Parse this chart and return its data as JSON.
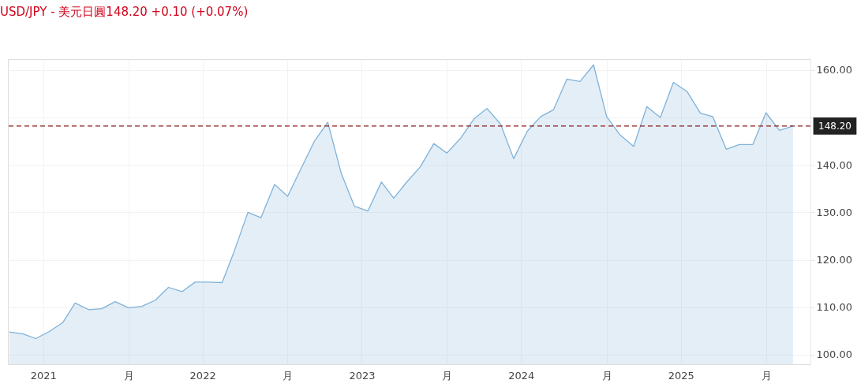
{
  "chart_data": {
    "type": "area",
    "title": "USD/JPY - 美元日圓148.20 +0.10 (+0.07%)",
    "x": [
      "2020-10-15",
      "2020-11-15",
      "2020-12-15",
      "2021-01-15",
      "2021-02-15",
      "2021-03-15",
      "2021-04-15",
      "2021-05-15",
      "2021-06-15",
      "2021-07-15",
      "2021-08-15",
      "2021-09-15",
      "2021-10-15",
      "2021-11-15",
      "2021-12-15",
      "2022-01-15",
      "2022-02-15",
      "2022-03-15",
      "2022-04-15",
      "2022-05-15",
      "2022-06-15",
      "2022-07-15",
      "2022-08-15",
      "2022-09-15",
      "2022-10-15",
      "2022-11-15",
      "2022-12-15",
      "2023-01-15",
      "2023-02-15",
      "2023-03-15",
      "2023-04-15",
      "2023-05-15",
      "2023-06-15",
      "2023-07-15",
      "2023-08-15",
      "2023-09-15",
      "2023-10-15",
      "2023-11-15",
      "2023-12-15",
      "2024-01-15",
      "2024-02-15",
      "2024-03-15",
      "2024-04-15",
      "2024-05-15",
      "2024-06-15",
      "2024-07-15",
      "2024-08-15",
      "2024-09-15",
      "2024-10-15",
      "2024-11-15",
      "2024-12-15",
      "2025-01-15",
      "2025-02-15",
      "2025-03-15",
      "2025-04-15",
      "2025-05-15",
      "2025-06-15",
      "2025-07-15",
      "2025-08-15",
      "2025-09-15"
    ],
    "series": [
      {
        "color": "#7fb2d9",
        "values": [
          104.8,
          104.4,
          103.4,
          104.9,
          106.8,
          110.9,
          109.5,
          109.7,
          111.2,
          109.9,
          110.2,
          111.5,
          114.2,
          113.3,
          115.3,
          115.3,
          115.2,
          121.9,
          130.0,
          128.9,
          135.9,
          133.4,
          139.3,
          145.1,
          149.0,
          138.2,
          131.3,
          130.3,
          136.4,
          133.0,
          136.5,
          139.6,
          144.5,
          142.5,
          145.6,
          149.7,
          151.9,
          148.6,
          141.3,
          147.1,
          150.2,
          151.6,
          158.1,
          157.6,
          161.1,
          150.2,
          146.3,
          143.9,
          152.3,
          150.0,
          157.4,
          155.5,
          150.9,
          150.2,
          143.3,
          144.3,
          144.3,
          151.0,
          147.3,
          148.2
        ]
      }
    ],
    "xlim": [
      "2020-10-12",
      "2025-10-25"
    ],
    "xticks": [
      "2021",
      {
        "value": "2021-07-15",
        "label": "月"
      },
      "2022",
      {
        "value": "2022-07-15",
        "label": "月"
      },
      "2023",
      {
        "value": "2023-07-15",
        "label": "月"
      },
      "2024",
      {
        "value": "2024-07-15",
        "label": "月"
      },
      "2025",
      {
        "value": "2025-07-15",
        "label": "月"
      }
    ],
    "ylim": [
      98,
      162.3
    ],
    "yticks": [
      {
        "value": 100,
        "label": "100.00"
      },
      {
        "value": 110,
        "label": "110.00"
      },
      {
        "value": 120,
        "label": "120.00"
      },
      {
        "value": 130,
        "label": "130.00"
      },
      {
        "value": 140,
        "label": "140.00"
      },
      {
        "value": 150,
        "label": null
      },
      {
        "value": 160,
        "label": "160.00"
      }
    ],
    "ref_lines": [
      {
        "axis": "y",
        "value": 148.2,
        "label": "148.20",
        "color": "#8b1a1a",
        "line_style": "dashed"
      }
    ],
    "grid": true
  }
}
